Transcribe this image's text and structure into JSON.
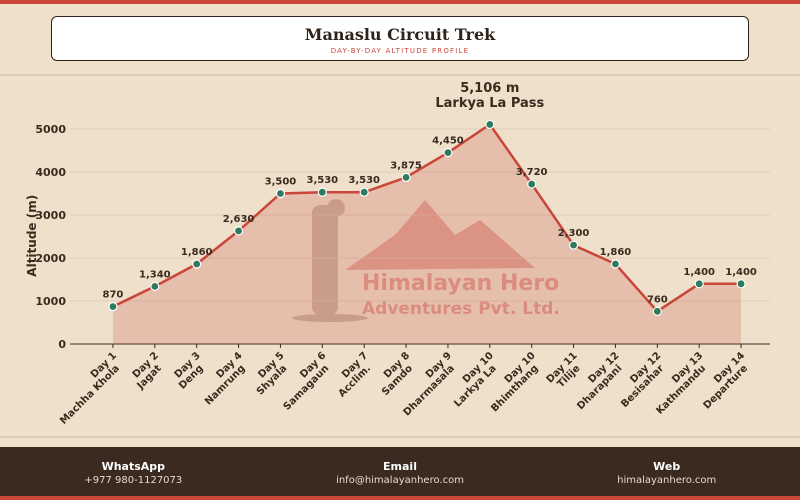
{
  "header": {
    "title": "Manaslu Circuit Trek",
    "subtitle": "DAY-BY-DAY ALTITUDE PROFILE"
  },
  "chart_data": {
    "type": "line",
    "categories": [
      "Day 1\nMachha Khola",
      "Day 2\nJagat",
      "Day 3\nDeng",
      "Day 4\nNamrung",
      "Day 5\nShyala",
      "Day 6\nSamagaun",
      "Day 7\nAcclim.",
      "Day 8\nSamdo",
      "Day 9\nDharmasala",
      "Day 10\nLarkya La",
      "Day 10\nBhimthang",
      "Day 11\nTilije",
      "Day 12\nDharapani",
      "Day 12\nBesisahar",
      "Day 13\nKathmandu",
      "Day 14\nDeparture"
    ],
    "values": [
      870,
      1340,
      1860,
      2630,
      3500,
      3530,
      3530,
      3875,
      4450,
      5106,
      3720,
      2300,
      1860,
      760,
      1400,
      1400
    ],
    "value_labels": [
      "870",
      "1,340",
      "1,860",
      "2,630",
      "3,500",
      "3,530",
      "3,530",
      "3,875",
      "4,450",
      null,
      "3,720",
      "2,300",
      "1,860",
      "760",
      "1,400",
      "1,400"
    ],
    "color": "#c9463a",
    "marker_color": "#2e7a5e",
    "ylabel": "Altitude (m)",
    "ylim": [
      0,
      5500
    ],
    "yticks": [
      0,
      1000,
      2000,
      3000,
      4000,
      5000
    ],
    "grid": true,
    "annotation": {
      "label": "5,106 m",
      "text": "Larkya La Pass"
    },
    "watermark": [
      "Himalayan Hero",
      "Adventures Pvt. Ltd."
    ]
  },
  "footer": {
    "contacts": [
      {
        "label": "WhatsApp",
        "value": "+977 980-1127073"
      },
      {
        "label": "Email",
        "value": "info@himalayanhero.com"
      },
      {
        "label": "Web",
        "value": "himalayanhero.com"
      }
    ]
  }
}
